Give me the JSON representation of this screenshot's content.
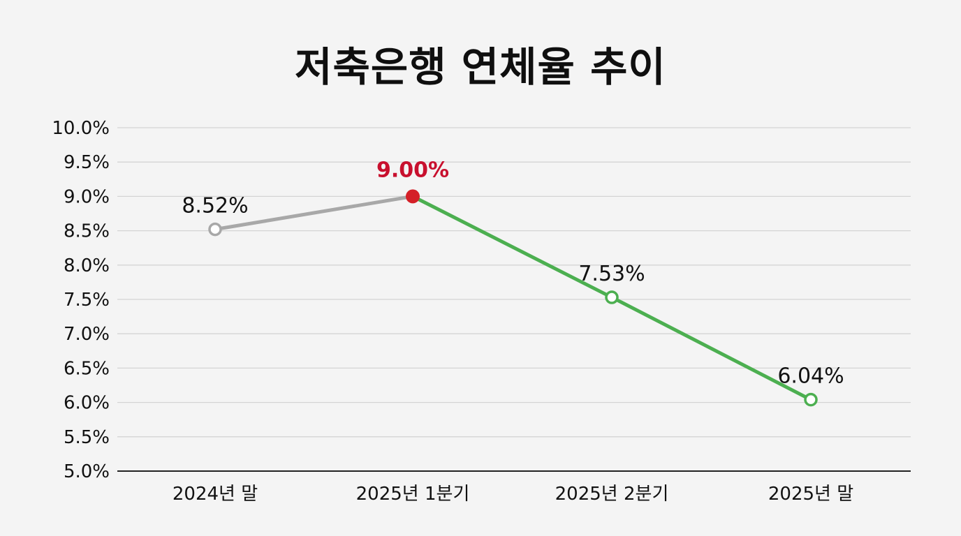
{
  "chart_data": {
    "type": "line",
    "title": "저축은행 연체율 추이",
    "xlabel": "",
    "ylabel": "",
    "categories": [
      "2024년 말",
      "2025년 1분기",
      "2025년 2분기",
      "2025년 말"
    ],
    "values": [
      8.52,
      9.0,
      7.53,
      6.04
    ],
    "data_labels": [
      "8.52%",
      "9.00%",
      "7.53%",
      "6.04%"
    ],
    "highlight_index": 1,
    "ylim": [
      5.0,
      10.0
    ],
    "y_ticks": [
      "5.0%",
      "5.5%",
      "6.0%",
      "6.5%",
      "7.0%",
      "7.5%",
      "8.0%",
      "8.5%",
      "9.0%",
      "9.5%",
      "10.0%"
    ],
    "grid": true,
    "legend": "none",
    "colors": {
      "rising_segment": "#a8a8a8",
      "falling_segment": "#4caf50",
      "highlight_point": "#d42027",
      "highlight_label": "#c8102e",
      "first_marker": "#a8a8a8",
      "falling_markers": "#4caf50",
      "grid": "#d4d4d4",
      "axis": "#222222"
    }
  }
}
